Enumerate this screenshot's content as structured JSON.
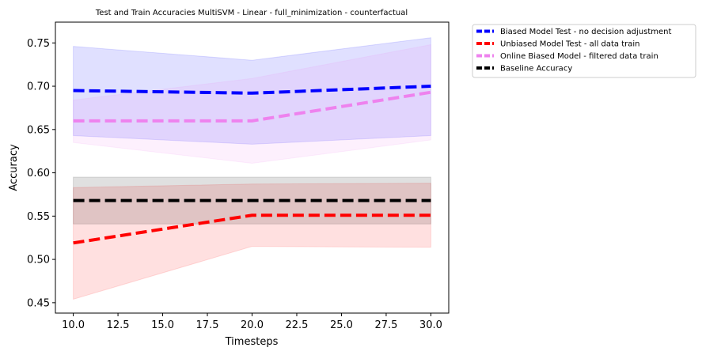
{
  "chart_data": {
    "type": "line",
    "title": "Test and Train Accuracies MultiSVM - Linear - full_minimization - counterfactual",
    "xlabel": "Timesteps",
    "ylabel": "Accuracy",
    "xlim": [
      9.0,
      31.0
    ],
    "ylim": [
      0.438,
      0.774
    ],
    "x": [
      10,
      20,
      30
    ],
    "x_ticks": [
      10.0,
      12.5,
      15.0,
      17.5,
      20.0,
      22.5,
      25.0,
      27.5,
      30.0
    ],
    "x_tick_labels": [
      "10.0",
      "12.5",
      "15.0",
      "17.5",
      "20.0",
      "22.5",
      "25.0",
      "27.5",
      "30.0"
    ],
    "y_ticks": [
      0.45,
      0.5,
      0.55,
      0.6,
      0.65,
      0.7,
      0.75
    ],
    "y_tick_labels": [
      "0.45",
      "0.50",
      "0.55",
      "0.60",
      "0.65",
      "0.70",
      "0.75"
    ],
    "grid": false,
    "legend_position": "outside upper right",
    "series": [
      {
        "name": "Biased Model Test - no decision adjustment",
        "color": "#0000ff",
        "values": [
          0.695,
          0.692,
          0.7
        ],
        "lower": [
          0.643,
          0.633,
          0.643
        ],
        "upper": [
          0.746,
          0.73,
          0.756
        ]
      },
      {
        "name": "Unbiased Model Test - all data train",
        "color": "#ff0000",
        "values": [
          0.519,
          0.551,
          0.551
        ],
        "lower": [
          0.454,
          0.515,
          0.514
        ],
        "upper": [
          0.583,
          0.587,
          0.588
        ]
      },
      {
        "name": "Online Biased Model - filtered data train",
        "color": "#ee82ee",
        "values": [
          0.66,
          0.66,
          0.693
        ],
        "lower": [
          0.635,
          0.611,
          0.638
        ],
        "upper": [
          0.684,
          0.709,
          0.748
        ]
      },
      {
        "name": "Baseline Accuracy",
        "color": "#000000",
        "values": [
          0.568,
          0.568,
          0.568
        ],
        "lower": [
          0.541,
          0.541,
          0.541
        ],
        "upper": [
          0.595,
          0.595,
          0.595
        ]
      }
    ]
  }
}
